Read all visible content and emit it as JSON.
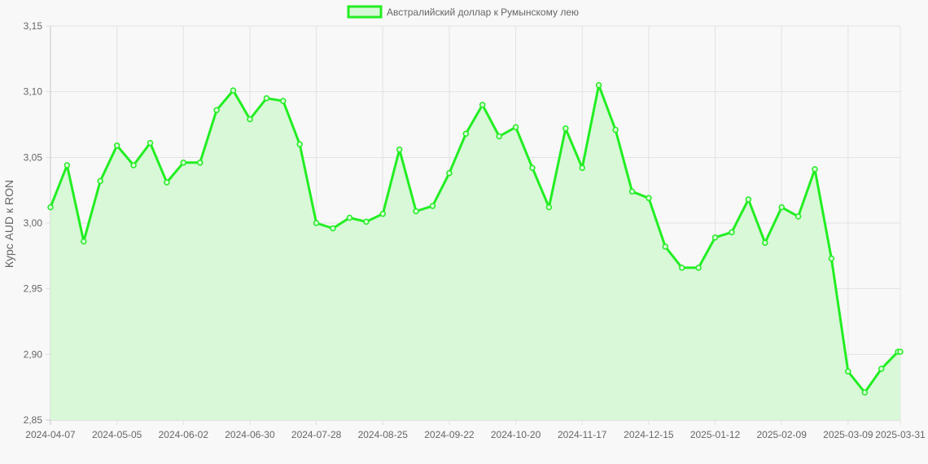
{
  "chart_data": {
    "type": "line",
    "title": "",
    "xlabel": "",
    "ylabel": "Курс AUD к RON",
    "legend": {
      "position": "top",
      "entries": [
        "Австралийский доллар к Румынскому лею"
      ]
    },
    "grid": true,
    "ylim": [
      2.85,
      3.15
    ],
    "y_ticks": [
      "3,15",
      "3,10",
      "3,05",
      "3,00",
      "2,95",
      "2,90",
      "2,85"
    ],
    "x_tick_labels": [
      "2024-04-07",
      "2024-05-05",
      "2024-06-02",
      "2024-06-30",
      "2024-07-28",
      "2024-08-25",
      "2024-09-22",
      "2024-10-20",
      "2024-11-17",
      "2024-12-15",
      "2025-01-12",
      "2025-02-09",
      "2025-03-09",
      "2025-03-31"
    ],
    "series": [
      {
        "name": "Австралийский доллар к Румынскому лею",
        "color": "#22ee22",
        "fill": "#d8f8d8",
        "x": [
          "2024-04-07",
          "2024-04-14",
          "2024-04-21",
          "2024-04-28",
          "2024-05-05",
          "2024-05-12",
          "2024-05-19",
          "2024-05-26",
          "2024-06-02",
          "2024-06-09",
          "2024-06-16",
          "2024-06-23",
          "2024-06-30",
          "2024-07-07",
          "2024-07-14",
          "2024-07-21",
          "2024-07-28",
          "2024-08-04",
          "2024-08-11",
          "2024-08-18",
          "2024-08-25",
          "2024-09-01",
          "2024-09-08",
          "2024-09-15",
          "2024-09-22",
          "2024-09-29",
          "2024-10-06",
          "2024-10-13",
          "2024-10-20",
          "2024-10-27",
          "2024-11-03",
          "2024-11-10",
          "2024-11-17",
          "2024-11-24",
          "2024-12-01",
          "2024-12-08",
          "2024-12-15",
          "2024-12-22",
          "2024-12-29",
          "2025-01-05",
          "2025-01-12",
          "2025-01-19",
          "2025-01-26",
          "2025-02-02",
          "2025-02-09",
          "2025-02-16",
          "2025-02-23",
          "2025-03-02",
          "2025-03-09",
          "2025-03-16",
          "2025-03-23",
          "2025-03-30",
          "2025-03-31"
        ],
        "values": [
          3.012,
          3.044,
          2.986,
          3.032,
          3.059,
          3.044,
          3.061,
          3.031,
          3.046,
          3.046,
          3.086,
          3.101,
          3.079,
          3.095,
          3.093,
          3.06,
          3.0,
          2.996,
          3.004,
          3.001,
          3.007,
          3.056,
          3.009,
          3.013,
          3.038,
          3.068,
          3.09,
          3.066,
          3.073,
          3.042,
          3.012,
          3.072,
          3.042,
          3.105,
          3.071,
          3.024,
          3.019,
          2.982,
          2.966,
          2.966,
          2.989,
          2.993,
          3.018,
          2.985,
          3.012,
          3.005,
          3.041,
          2.973,
          2.887,
          2.871,
          2.889,
          2.902,
          2.902
        ]
      }
    ]
  }
}
